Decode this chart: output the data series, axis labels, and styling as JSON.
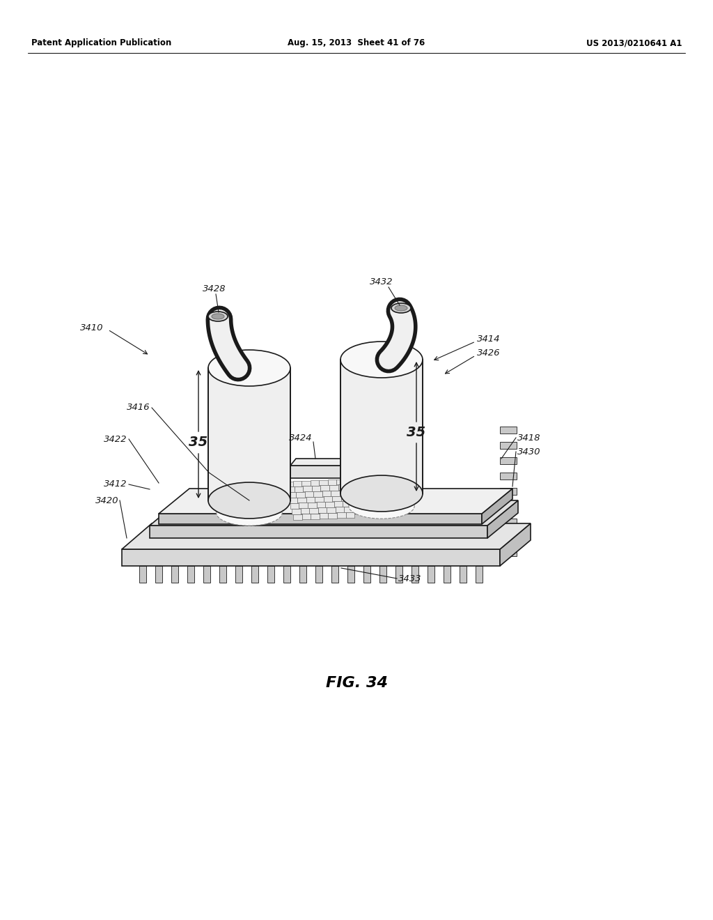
{
  "bg_color": "#ffffff",
  "line_color": "#1a1a1a",
  "dashed_color": "#888888",
  "header_left": "Patent Application Publication",
  "header_mid": "Aug. 15, 2013  Sheet 41 of 76",
  "header_right": "US 2013/0210641 A1",
  "fig_label": "FIG. 34",
  "label_fontsize": 9.5,
  "fig_label_fontsize": 16,
  "header_fontsize": 8.5
}
